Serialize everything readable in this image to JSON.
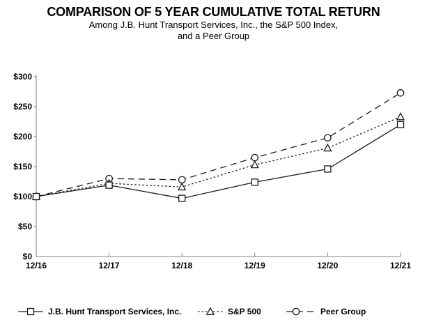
{
  "chart_data": {
    "type": "line",
    "title": "COMPARISON OF 5 YEAR CUMULATIVE TOTAL RETURN",
    "subtitle_line1": "Among J.B. Hunt Transport Services, Inc., the S&P 500 Index,",
    "subtitle_line2": "and a Peer Group",
    "categories": [
      "12/16",
      "12/17",
      "12/18",
      "12/19",
      "12/20",
      "12/21"
    ],
    "series": [
      {
        "name": "J.B. Hunt Transport Services, Inc.",
        "values": [
          100,
          119,
          97,
          124,
          146,
          220
        ],
        "line_style": "solid",
        "marker": "square"
      },
      {
        "name": "S&P 500",
        "values": [
          100,
          122,
          116,
          153,
          181,
          233
        ],
        "line_style": "dotted",
        "marker": "triangle"
      },
      {
        "name": "Peer Group",
        "values": [
          100,
          130,
          128,
          165,
          198,
          273
        ],
        "line_style": "dashed",
        "marker": "circle"
      }
    ],
    "ylim": [
      0,
      300
    ],
    "ytick_step": 50,
    "ytick_labels": [
      "$0",
      "$50",
      "$100",
      "$150",
      "$200",
      "$250",
      "$300"
    ],
    "xlabel": "",
    "ylabel": "",
    "grid": false,
    "legend_position": "bottom",
    "colors": {
      "text": "#000000",
      "axis": "#808080",
      "line": "#1a1a1a",
      "marker_fill": "#ffffff",
      "background": "#ffffff"
    }
  }
}
